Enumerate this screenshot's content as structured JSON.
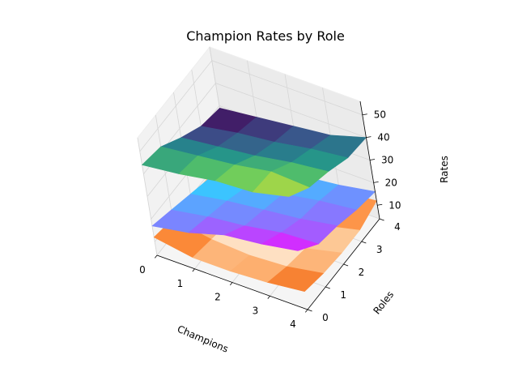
{
  "chart_data": {
    "type": "surface3d",
    "title": "Champion Rates by Role",
    "xlabel": "Champions",
    "ylabel": "Roles",
    "zlabel": "Rates",
    "x_ticks": [
      0,
      1,
      2,
      3,
      4
    ],
    "y_ticks": [
      0,
      1,
      2,
      3,
      4
    ],
    "z_ticks": [
      10,
      20,
      30,
      40,
      50
    ],
    "xlim": [
      0,
      4
    ],
    "ylim": [
      0,
      4
    ],
    "zlim": [
      4,
      56
    ],
    "grid": true,
    "series": [
      {
        "colormap": "viridis",
        "z": [
          [
            44,
            46,
            49,
            50,
            54
          ],
          [
            42,
            44,
            46,
            49,
            48
          ],
          [
            36,
            38,
            40,
            43,
            45
          ],
          [
            31,
            34,
            36,
            39,
            41
          ],
          [
            29,
            31,
            33,
            35,
            40
          ]
        ]
      },
      {
        "colormap": "cool",
        "z": [
          [
            17,
            20,
            25,
            27,
            30
          ],
          [
            14,
            17,
            19,
            22,
            23
          ],
          [
            11,
            14,
            16,
            18,
            21
          ],
          [
            8,
            10,
            13,
            16,
            18
          ],
          [
            5,
            8,
            11,
            13,
            16
          ]
        ]
      },
      {
        "colormap": "Oranges_r",
        "z": [
          [
            12,
            9,
            9,
            10,
            12
          ],
          [
            10,
            7,
            6,
            7,
            10
          ],
          [
            9,
            5,
            4,
            5,
            9
          ],
          [
            9,
            5,
            4,
            5,
            9
          ],
          [
            12,
            9,
            9,
            10,
            12
          ]
        ]
      }
    ]
  }
}
